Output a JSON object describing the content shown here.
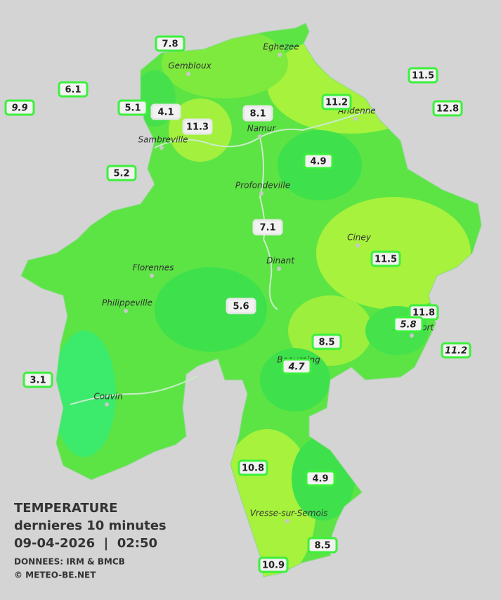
{
  "legend": {
    "title": "TEMPERATURE",
    "subtitle": "dernieres 10 minutes",
    "datetime": "09-04-2026  |  02:50",
    "source": "DONNEES: IRM & BMCB",
    "credit": "© METEO-BE.NET"
  },
  "towns": [
    "Eghezee",
    "Gembloux",
    "Andenne",
    "Namur",
    "Sambreville",
    "Profondeville",
    "Ciney",
    "Dinant",
    "Florennes",
    "Philippeville",
    "Rochefort",
    "Beauraing",
    "Couvin",
    "Vresse-sur-Semois"
  ],
  "stations": [
    7.8,
    6.1,
    9.9,
    5.1,
    4.1,
    11.3,
    8.1,
    11.2,
    11.5,
    12.8,
    5.2,
    4.9,
    7.1,
    11.5,
    5.6,
    11.8,
    5.8,
    8.5,
    11.2,
    4.7,
    3.1,
    10.8,
    4.9,
    8.5,
    10.9
  ]
}
